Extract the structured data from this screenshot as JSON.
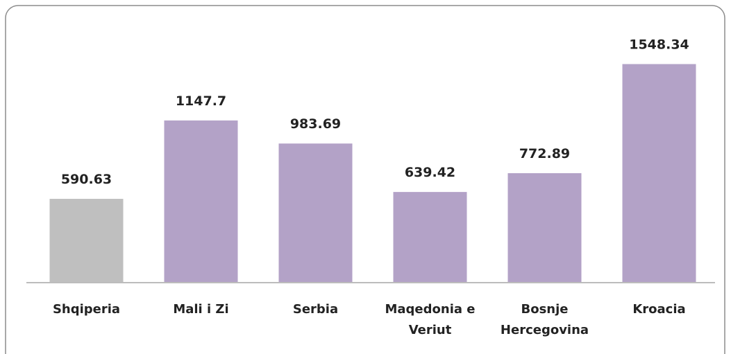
{
  "chart_data": {
    "type": "bar",
    "categories": [
      "Shqiperia",
      "Mali i Zi",
      "Serbia",
      "Maqedonia e Veriut",
      "Bosnje Hercegovina",
      "Kroacia"
    ],
    "values": [
      590.63,
      1147.7,
      983.69,
      639.42,
      772.89,
      1548.34
    ],
    "colors": [
      "#bfbfbf",
      "#b3a2c7",
      "#b3a2c7",
      "#b3a2c7",
      "#b3a2c7",
      "#b3a2c7"
    ],
    "ylim": [
      0,
      1600
    ]
  }
}
